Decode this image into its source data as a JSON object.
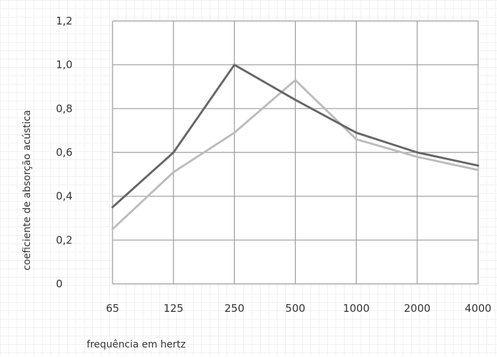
{
  "chart_data": {
    "type": "line",
    "title": "",
    "xlabel": "frequência em hertz",
    "ylabel": "coeficiente de absorção acústica",
    "categories": [
      "65",
      "125",
      "250",
      "500",
      "1000",
      "2000",
      "4000"
    ],
    "yticks": [
      "0",
      "0,2",
      "0,4",
      "0,6",
      "0,8",
      "1,0",
      "1,2"
    ],
    "ylim": [
      0,
      1.2
    ],
    "grid": true,
    "legend": "none",
    "series": [
      {
        "values": [
          0.35,
          0.6,
          1.0,
          0.84,
          0.69,
          0.6,
          0.54
        ],
        "color": "#666666"
      },
      {
        "values": [
          0.25,
          0.51,
          0.69,
          0.93,
          0.66,
          0.58,
          0.52
        ],
        "color": "#bcbcbc"
      }
    ]
  }
}
